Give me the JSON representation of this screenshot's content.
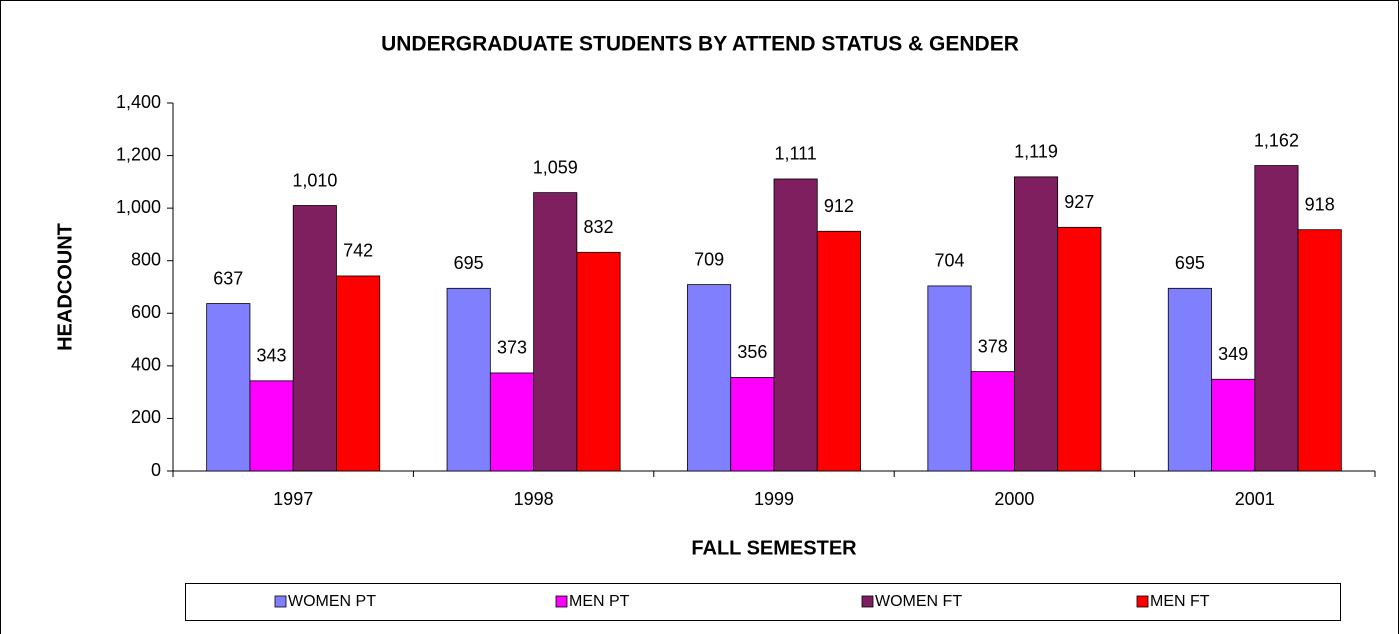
{
  "chart_data": {
    "type": "bar",
    "title": "UNDERGRADUATE STUDENTS BY ATTEND STATUS & GENDER",
    "x_label": "FALL SEMESTER",
    "y_label": "HEADCOUNT",
    "categories": [
      "1997",
      "1998",
      "1999",
      "2000",
      "2001"
    ],
    "series": [
      {
        "name": "WOMEN PT",
        "color": "#8080ff",
        "values": [
          637,
          695,
          709,
          704,
          695
        ]
      },
      {
        "name": "MEN PT",
        "color": "#ff00ff",
        "values": [
          343,
          373,
          356,
          378,
          349
        ]
      },
      {
        "name": "WOMEN FT",
        "color": "#7f1f5f",
        "values": [
          1010,
          1059,
          1111,
          1119,
          1162
        ],
        "value_labels": [
          "1,010",
          "1,059",
          "1,111",
          "1,119",
          "1,162"
        ]
      },
      {
        "name": "MEN FT",
        "color": "#ff0000",
        "values": [
          742,
          832,
          912,
          927,
          918
        ]
      }
    ],
    "ylim": [
      0,
      1400
    ],
    "yticks": [
      0,
      200,
      400,
      600,
      800,
      {
        "value": 1000,
        "label": "1,000"
      },
      {
        "value": 1200,
        "label": "1,200"
      },
      {
        "value": 1400,
        "label": "1,400"
      }
    ],
    "grid": false,
    "legend": "bottom"
  }
}
